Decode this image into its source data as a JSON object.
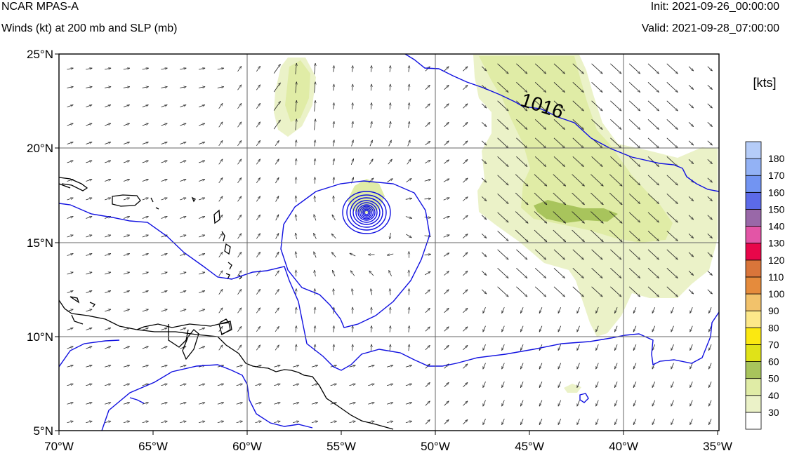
{
  "header": {
    "title": "NCAR MPAS-A",
    "subtitle": "Winds (kt) at 200 mb and SLP (mb)",
    "init": "Init: 2021-09-26_00:00:00",
    "valid": "Valid: 2021-09-28_07:00:00"
  },
  "map": {
    "lon_range": [
      -70,
      -35
    ],
    "lat_range": [
      5,
      25
    ],
    "lat_labels": [
      "5°N",
      "10°N",
      "15°N",
      "20°N",
      "25°N"
    ],
    "lon_labels": [
      "70°W",
      "65°W",
      "60°W",
      "55°W",
      "50°W",
      "45°W",
      "40°W",
      "35°W"
    ],
    "gridlines": true,
    "isobar_label": "1016",
    "isobar_color": "#1010e0",
    "coastline_color": "#000000"
  },
  "colorbar": {
    "unit_label": "[kts]",
    "levels": [
      "30",
      "40",
      "50",
      "60",
      "70",
      "80",
      "90",
      "100",
      "110",
      "120",
      "130",
      "140",
      "150",
      "160",
      "170",
      "180"
    ],
    "colors": [
      "#ffffff",
      "#ebf2c8",
      "#e0eca6",
      "#a8c45c",
      "#e0e218",
      "#fbe811",
      "#fde88a",
      "#f2c26b",
      "#e58b3c",
      "#d9753a",
      "#e8064a",
      "#e355a6",
      "#9968a8",
      "#5c6ae8",
      "#7294f2",
      "#93b2f5",
      "#b5ccf8"
    ]
  }
}
